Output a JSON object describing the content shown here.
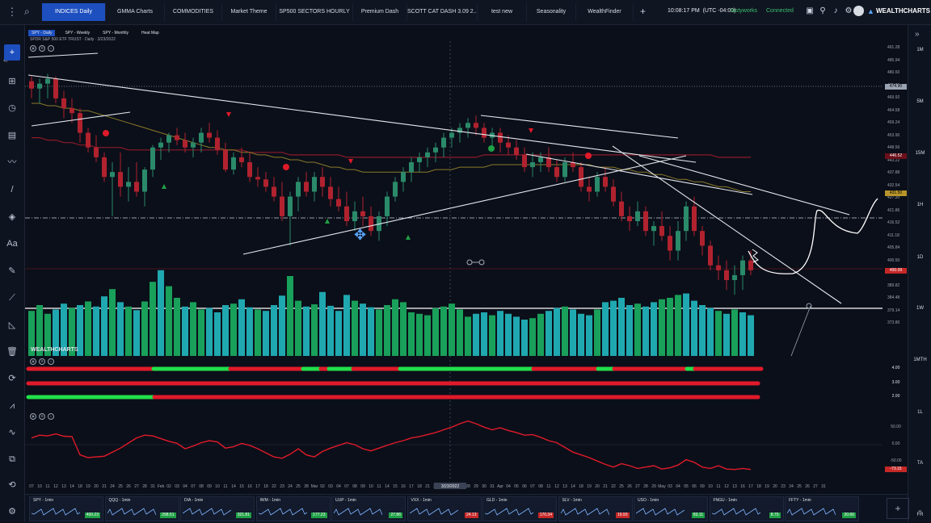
{
  "topbar": {
    "tabs": [
      {
        "label": "INDICES Daily",
        "active": true,
        "w": 78
      },
      {
        "label": "GMMA Charts",
        "w": 72
      },
      {
        "label": "COMMODITIES",
        "w": 70
      },
      {
        "label": "Market Theme",
        "w": 66
      },
      {
        "label": "SP500 SECTORS HOURLY",
        "w": 94
      },
      {
        "label": "Premium Dash",
        "w": 66
      },
      {
        "label": "SCOTT CAT DASH 3.09 2...",
        "w": 86
      },
      {
        "label": "test new",
        "w": 60
      },
      {
        "label": "Seasonality",
        "w": 60
      },
      {
        "label": "WealthFinder",
        "w": 70
      }
    ],
    "clock": "10:08:17 PM",
    "timezone": "(UTC -04:00)",
    "user": "tastyworks",
    "status": "Connected",
    "brand": "WEALTHCHARTS"
  },
  "chart": {
    "tabs": [
      {
        "label": "SPY - Daily",
        "active": true
      },
      {
        "label": "SPY - Weekly"
      },
      {
        "label": "SPY - Monthly"
      },
      {
        "label": "Heat Map"
      }
    ],
    "symbol_desc": "SPDR S&P 500 ETF TRUST · Daily · 3/23/2022",
    "watermark": "WEALTHCHARTS",
    "date_cursor": "3/23/2022",
    "price_ticks": [
      "491.28",
      "485.94",
      "480.60",
      "475.26",
      "469.92",
      "464.58",
      "459.24",
      "453.90",
      "448.56",
      "443.22",
      "437.88",
      "432.54",
      "427.20",
      "421.86",
      "416.52",
      "411.18",
      "405.84",
      "400.50",
      "395.16",
      "389.82",
      "384.48",
      "379.14",
      "373.80"
    ],
    "price_tags": [
      {
        "value": "474.90",
        "price": 474.9,
        "bg": "#9aa3b2",
        "fg": "#000"
      },
      {
        "value": "446.52",
        "price": 446.5,
        "bg": "#6b0f1a",
        "fg": "#fff"
      },
      {
        "value": "431.50",
        "price": 431.5,
        "bg": "#b8952a",
        "fg": "#000"
      },
      {
        "value": "400.09",
        "price": 400.1,
        "bg": "#c62828",
        "fg": "#fff"
      }
    ],
    "ribbon_levels": [
      "4.00",
      "3.00",
      "2.00"
    ],
    "osc_levels": [
      "50.00",
      "0.00",
      "-50.00",
      "-73.15"
    ],
    "dates": [
      "07",
      "10",
      "11",
      "12",
      "13",
      "14",
      "18",
      "19",
      "20",
      "21",
      "24",
      "25",
      "26",
      "27",
      "28",
      "31",
      "Feb",
      "02",
      "03",
      "04",
      "07",
      "08",
      "09",
      "10",
      "11",
      "14",
      "15",
      "16",
      "17",
      "18",
      "22",
      "23",
      "24",
      "25",
      "28",
      "Mar",
      "02",
      "03",
      "04",
      "07",
      "08",
      "09",
      "10",
      "11",
      "14",
      "15",
      "16",
      "17",
      "18",
      "21",
      "22",
      "23",
      "24",
      "25",
      "28",
      "29",
      "30",
      "31",
      "Apr",
      "04",
      "05",
      "06",
      "07",
      "08",
      "11",
      "12",
      "13",
      "14",
      "18",
      "19",
      "20",
      "21",
      "22",
      "25",
      "26",
      "27",
      "28",
      "29",
      "May",
      "03",
      "04",
      "05",
      "06",
      "09",
      "10",
      "11",
      "12",
      "13",
      "16",
      "17",
      "18",
      "19",
      "20",
      "23",
      "24",
      "25",
      "26",
      "27",
      "31"
    ]
  },
  "timeframes": [
    "1M",
    "5M",
    "15M",
    "1H",
    "1D",
    "1W",
    "1MTH",
    "1L",
    "TA",
    "FR"
  ],
  "watchlist": [
    {
      "name": "SPY - 1min",
      "value": "400.23",
      "color": "#1fa045"
    },
    {
      "name": "QQQ - 1min",
      "value": "298.51",
      "color": "#1fa045"
    },
    {
      "name": "DIA - 1min",
      "value": "321.81",
      "color": "#1fa045"
    },
    {
      "name": "IWM - 1min",
      "value": "177.23",
      "color": "#1fa045"
    },
    {
      "name": "UUP - 1min",
      "value": "27.86",
      "color": "#1fa045"
    },
    {
      "name": "VXX - 1min",
      "value": "24.13",
      "color": "#c62828"
    },
    {
      "name": "GLD - 1min",
      "value": "170.34",
      "color": "#c62828"
    },
    {
      "name": "SLV - 1min",
      "value": "19.93",
      "color": "#c62828"
    },
    {
      "name": "USO - 1min",
      "value": "83.11",
      "color": "#1fa045"
    },
    {
      "name": "FNGU - 1min",
      "value": "8.75",
      "color": "#1fa045"
    },
    {
      "name": "FFTY - 1min",
      "value": "20.66",
      "color": "#1fa045"
    }
  ],
  "chart_data": {
    "type": "candlestick",
    "ohlc": [
      [
        477,
        479,
        470,
        474
      ],
      [
        474,
        478,
        468,
        476
      ],
      [
        476,
        480,
        470,
        478
      ],
      [
        478,
        479,
        468,
        470
      ],
      [
        470,
        473,
        462,
        466
      ],
      [
        466,
        470,
        460,
        464
      ],
      [
        464,
        466,
        452,
        456
      ],
      [
        456,
        458,
        448,
        450
      ],
      [
        450,
        455,
        444,
        446
      ],
      [
        446,
        448,
        436,
        438
      ],
      [
        438,
        444,
        422,
        440
      ],
      [
        440,
        448,
        430,
        434
      ],
      [
        434,
        442,
        428,
        436
      ],
      [
        436,
        444,
        430,
        432
      ],
      [
        432,
        442,
        426,
        441
      ],
      [
        441,
        451,
        438,
        450
      ],
      [
        450,
        454,
        445,
        452
      ],
      [
        452,
        456,
        448,
        455
      ],
      [
        455,
        458,
        451,
        453
      ],
      [
        453,
        456,
        448,
        450
      ],
      [
        450,
        454,
        446,
        452
      ],
      [
        452,
        458,
        448,
        456
      ],
      [
        456,
        460,
        452,
        454
      ],
      [
        454,
        457,
        447,
        449
      ],
      [
        449,
        452,
        440,
        441
      ],
      [
        441,
        448,
        439,
        446
      ],
      [
        446,
        450,
        442,
        444
      ],
      [
        444,
        448,
        436,
        438
      ],
      [
        438,
        442,
        434,
        437
      ],
      [
        437,
        440,
        432,
        434
      ],
      [
        434,
        438,
        428,
        430
      ],
      [
        430,
        436,
        420,
        422
      ],
      [
        422,
        432,
        410,
        430
      ],
      [
        430,
        438,
        424,
        436
      ],
      [
        436,
        440,
        430,
        432
      ],
      [
        432,
        440,
        428,
        438
      ],
      [
        438,
        442,
        430,
        434
      ],
      [
        434,
        438,
        426,
        429
      ],
      [
        429,
        434,
        424,
        426
      ],
      [
        426,
        432,
        418,
        420
      ],
      [
        420,
        428,
        416,
        424
      ],
      [
        424,
        430,
        418,
        422
      ],
      [
        422,
        426,
        414,
        416
      ],
      [
        416,
        424,
        412,
        422
      ],
      [
        422,
        432,
        418,
        430
      ],
      [
        430,
        438,
        428,
        436
      ],
      [
        436,
        442,
        432,
        440
      ],
      [
        440,
        446,
        436,
        444
      ],
      [
        444,
        448,
        440,
        446
      ],
      [
        446,
        450,
        442,
        448
      ],
      [
        448,
        452,
        444,
        450
      ],
      [
        450,
        456,
        446,
        454
      ],
      [
        454,
        458,
        450,
        456
      ],
      [
        456,
        460,
        452,
        458
      ],
      [
        458,
        462,
        454,
        460
      ],
      [
        460,
        463,
        455,
        458
      ],
      [
        458,
        460,
        452,
        454
      ],
      [
        454,
        458,
        450,
        456
      ],
      [
        456,
        458,
        448,
        452
      ],
      [
        452,
        455,
        447,
        450
      ],
      [
        450,
        453,
        445,
        447
      ],
      [
        447,
        450,
        440,
        442
      ],
      [
        442,
        448,
        438,
        444
      ],
      [
        444,
        448,
        440,
        446
      ],
      [
        446,
        450,
        440,
        442
      ],
      [
        442,
        445,
        436,
        438
      ],
      [
        438,
        446,
        436,
        444
      ],
      [
        444,
        448,
        440,
        442
      ],
      [
        442,
        444,
        432,
        434
      ],
      [
        434,
        438,
        428,
        432
      ],
      [
        432,
        440,
        430,
        438
      ],
      [
        438,
        442,
        432,
        434
      ],
      [
        434,
        437,
        426,
        428
      ],
      [
        428,
        432,
        420,
        422
      ],
      [
        422,
        426,
        416,
        420
      ],
      [
        420,
        428,
        418,
        424
      ],
      [
        424,
        426,
        414,
        416
      ],
      [
        416,
        420,
        410,
        418
      ],
      [
        418,
        424,
        412,
        414
      ],
      [
        414,
        418,
        404,
        408
      ],
      [
        408,
        420,
        404,
        416
      ],
      [
        416,
        428,
        412,
        426
      ],
      [
        426,
        430,
        414,
        416
      ],
      [
        416,
        418,
        406,
        410
      ],
      [
        410,
        412,
        400,
        402
      ],
      [
        402,
        406,
        396,
        400
      ],
      [
        400,
        404,
        392,
        396
      ],
      [
        396,
        402,
        390,
        398
      ],
      [
        398,
        406,
        392,
        404
      ],
      [
        404,
        408,
        398,
        400
      ]
    ],
    "volume": [
      62,
      70,
      58,
      64,
      72,
      66,
      70,
      75,
      68,
      82,
      92,
      74,
      68,
      63,
      75,
      102,
      118,
      96,
      80,
      68,
      74,
      64,
      66,
      60,
      70,
      72,
      78,
      67,
      64,
      62,
      70,
      83,
      110,
      76,
      68,
      71,
      88,
      69,
      62,
      84,
      76,
      72,
      67,
      64,
      70,
      78,
      74,
      60,
      58,
      56,
      66,
      68,
      72,
      64,
      54,
      58,
      60,
      56,
      62,
      58,
      54,
      50,
      52,
      58,
      62,
      66,
      68,
      64,
      58,
      56,
      64,
      74,
      76,
      80,
      70,
      72,
      68,
      74,
      78,
      80,
      84,
      86,
      76,
      70,
      66,
      62,
      58,
      64,
      60,
      56
    ],
    "volume_color": [
      "#19a05a",
      "#19a05a",
      "#19a05a",
      "#20a8b0",
      "#20a8b0",
      "#19a05a",
      "#20a8b0",
      "#19a05a",
      "#20a8b0",
      "#20a8b0",
      "#19a05a",
      "#20a8b0",
      "#19a05a",
      "#20a8b0",
      "#19a05a",
      "#19a05a",
      "#20a8b0",
      "#19a05a",
      "#19a05a",
      "#20a8b0",
      "#19a05a",
      "#19a05a",
      "#20a8b0",
      "#20a8b0",
      "#20a8b0",
      "#19a05a",
      "#20a8b0",
      "#20a8b0",
      "#19a05a",
      "#20a8b0",
      "#20a8b0",
      "#20a8b0",
      "#19a05a",
      "#19a05a",
      "#20a8b0",
      "#19a05a",
      "#20a8b0",
      "#20a8b0",
      "#20a8b0",
      "#20a8b0",
      "#19a05a",
      "#20a8b0",
      "#20a8b0",
      "#19a05a",
      "#19a05a",
      "#19a05a",
      "#19a05a",
      "#19a05a",
      "#19a05a",
      "#19a05a",
      "#19a05a",
      "#19a05a",
      "#19a05a",
      "#19a05a",
      "#19a05a",
      "#20a8b0",
      "#20a8b0",
      "#19a05a",
      "#20a8b0",
      "#20a8b0",
      "#20a8b0",
      "#20a8b0",
      "#19a05a",
      "#19a05a",
      "#20a8b0",
      "#20a8b0",
      "#19a05a",
      "#20a8b0",
      "#20a8b0",
      "#20a8b0",
      "#19a05a",
      "#20a8b0",
      "#20a8b0",
      "#20a8b0",
      "#20a8b0",
      "#19a05a",
      "#20a8b0",
      "#20a8b0",
      "#19a05a",
      "#19a05a",
      "#19a05a",
      "#20a8b0",
      "#20a8b0",
      "#20a8b0",
      "#20a8b0",
      "#19a05a",
      "#20a8b0",
      "#19a05a",
      "#20a8b0",
      "#20a8b0"
    ],
    "oscillator": [
      20,
      28,
      26,
      32,
      25,
      24,
      -30,
      -38,
      -36,
      -34,
      -22,
      -10,
      5,
      20,
      28,
      26,
      18,
      10,
      4,
      -12,
      -4,
      6,
      12,
      8,
      -10,
      -6,
      4,
      -2,
      -12,
      -24,
      -36,
      -40,
      -28,
      -12,
      -30,
      -36,
      -20,
      -10,
      -2,
      6,
      0,
      -12,
      -18,
      -10,
      -2,
      6,
      12,
      20,
      24,
      30,
      36,
      44,
      52,
      62,
      70,
      62,
      52,
      44,
      50,
      42,
      36,
      28,
      30,
      22,
      12,
      6,
      -8,
      -22,
      -30,
      -38,
      -48,
      -58,
      -66,
      -56,
      -62,
      -70,
      -66,
      -62,
      -72,
      -68,
      -60,
      -44,
      -52,
      -66,
      -70,
      -62,
      -72,
      -73,
      -70,
      -73
    ],
    "ma50": [
      468,
      468,
      467,
      467,
      466,
      466,
      465,
      465,
      464,
      463,
      462,
      461,
      460,
      459,
      458,
      457,
      456,
      455,
      454,
      453,
      452,
      451,
      450,
      450,
      449,
      449,
      448,
      448,
      447,
      447,
      446,
      446,
      445,
      445,
      444,
      444,
      443,
      442,
      442,
      441,
      441,
      440,
      440,
      440,
      440,
      440,
      440,
      440,
      440,
      440,
      441,
      441,
      441,
      442,
      442,
      442,
      442,
      443,
      443,
      443,
      443,
      443,
      443,
      443,
      443,
      443,
      443,
      443,
      443,
      443,
      442,
      442,
      442,
      441,
      441,
      440,
      440,
      439,
      439,
      438,
      437,
      437,
      436,
      436,
      435,
      434,
      434,
      433,
      432,
      432
    ],
    "ma200": [
      454,
      454,
      453,
      453,
      452,
      452,
      451,
      451,
      450,
      450,
      450,
      450,
      449,
      449,
      449,
      449,
      449,
      449,
      449,
      449,
      449,
      449,
      449,
      449,
      449,
      449,
      449,
      448,
      448,
      448,
      448,
      448,
      447,
      447,
      447,
      447,
      447,
      447,
      447,
      446,
      446,
      446,
      446,
      446,
      446,
      446,
      446,
      446,
      446,
      446,
      446,
      446,
      446,
      446,
      446,
      446,
      447,
      447,
      447,
      447,
      447,
      447,
      447,
      447,
      447,
      447,
      447,
      447,
      447,
      447,
      447,
      447,
      447,
      447,
      447,
      447,
      447,
      447,
      447,
      447,
      447,
      447,
      447,
      447,
      447,
      446,
      446,
      446,
      446,
      446
    ]
  }
}
